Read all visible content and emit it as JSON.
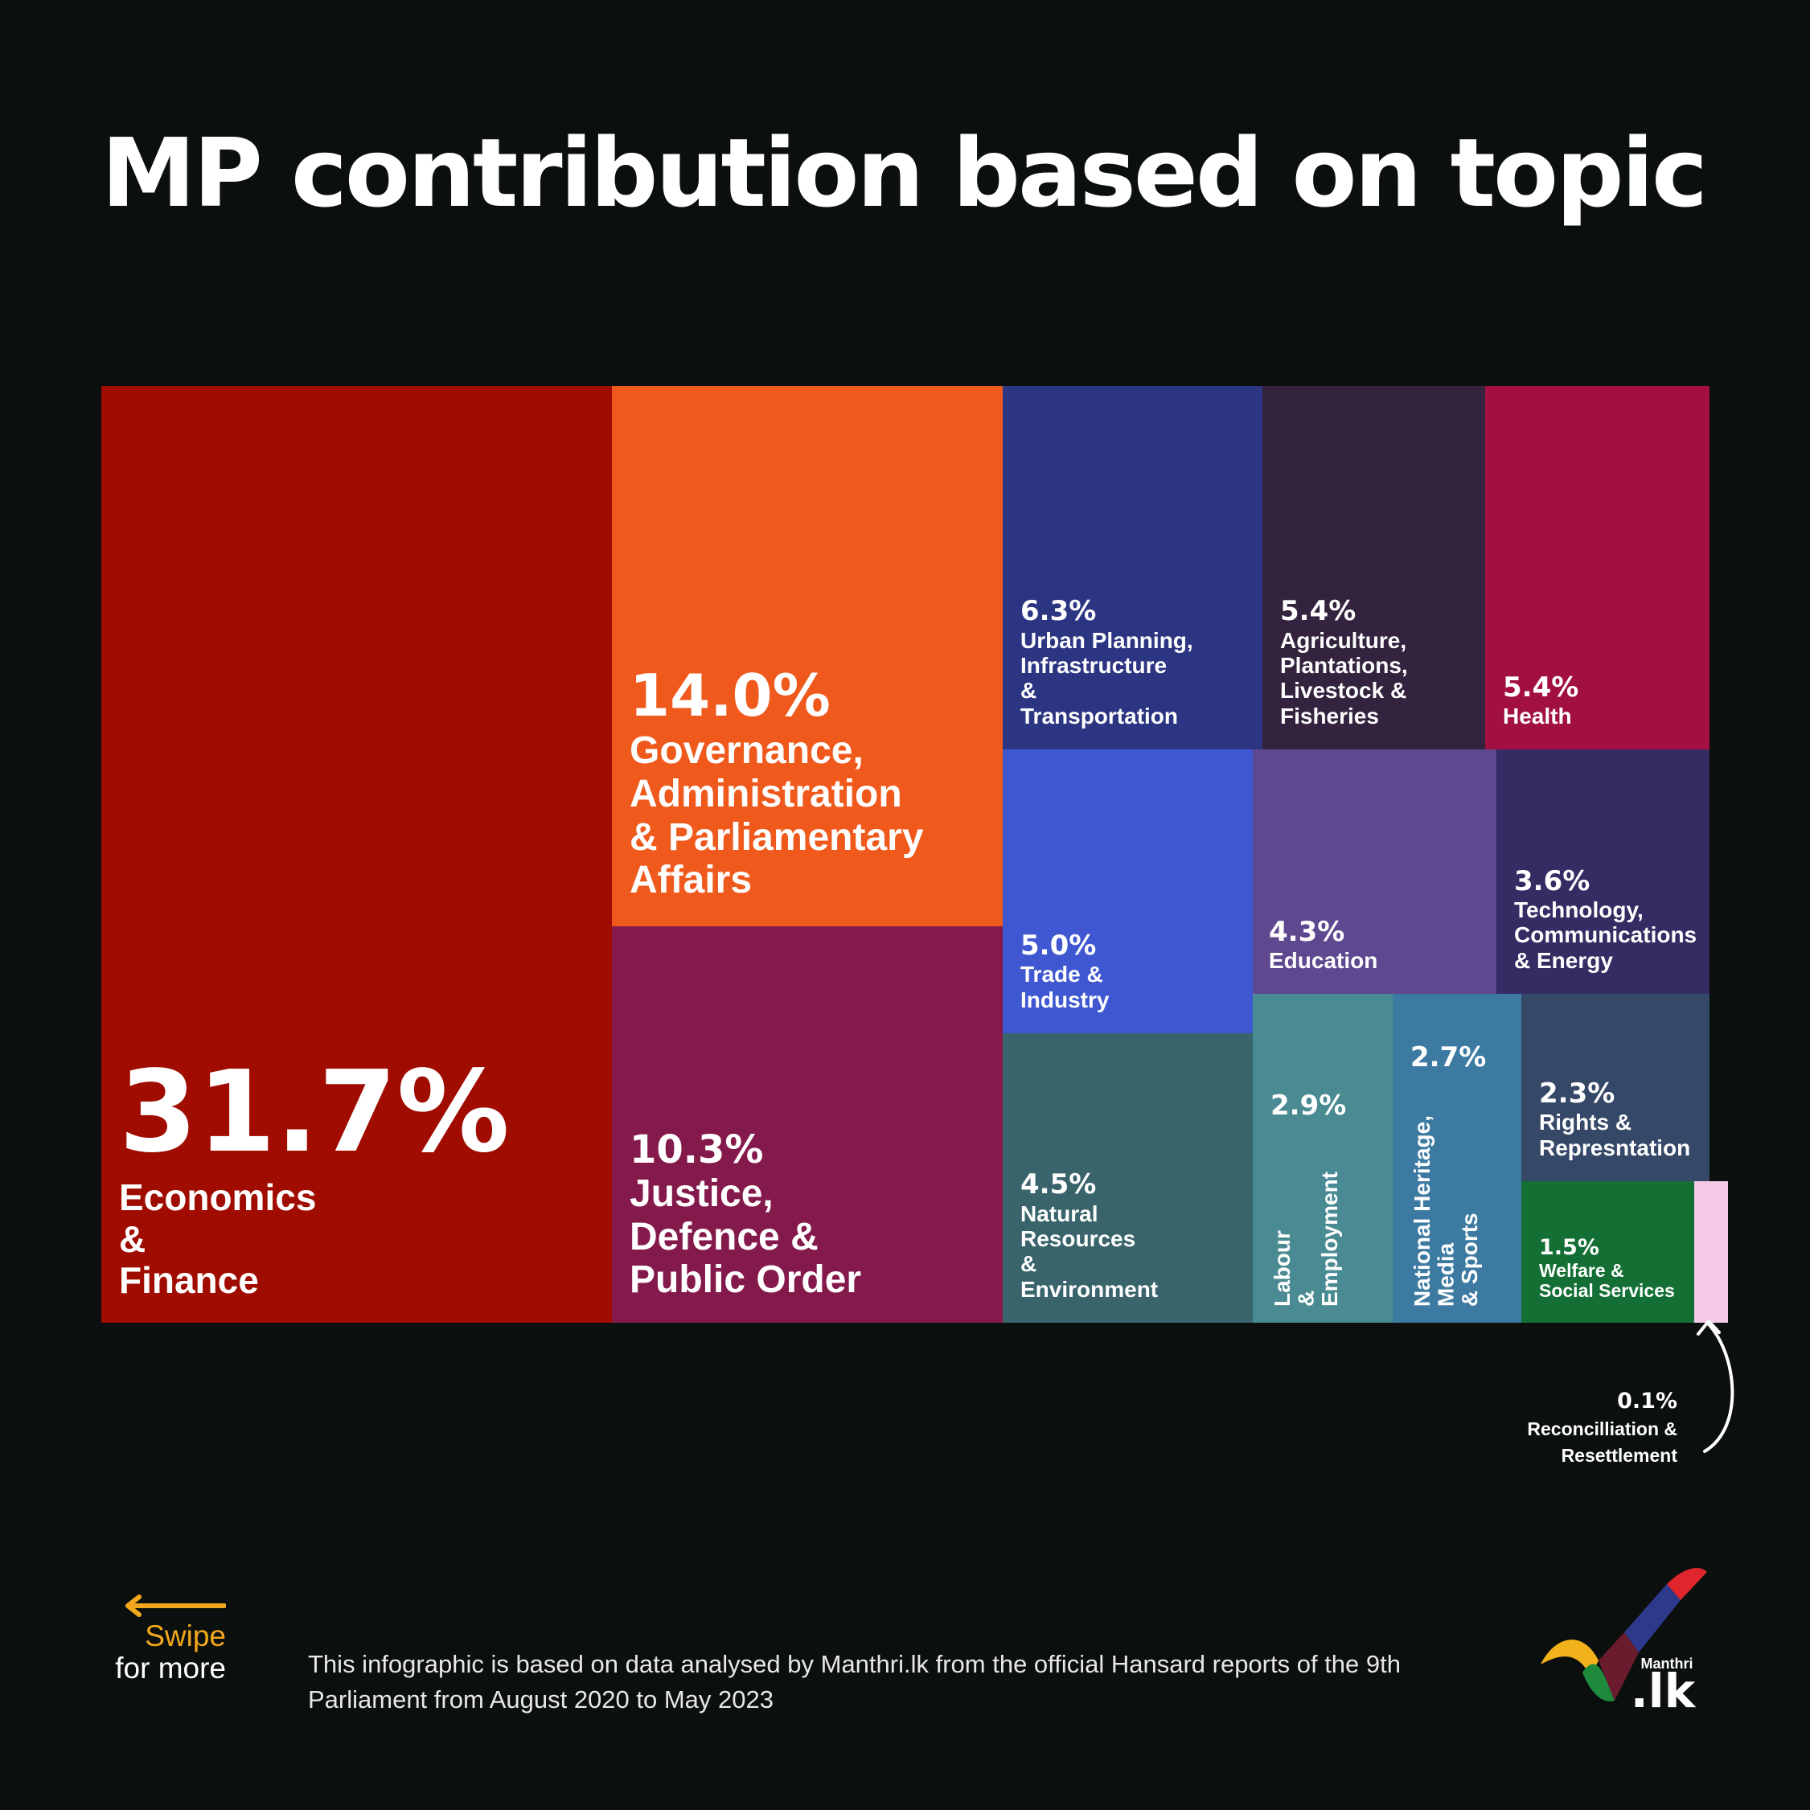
{
  "title": "MP contribution based on topic",
  "chart_data": {
    "type": "treemap",
    "title": "MP contribution based on topic",
    "unit": "%",
    "items": [
      {
        "key": "econ",
        "pct": "31.7%",
        "value": 31.7,
        "label": "Economics\n&\nFinance",
        "color": "#a00c00"
      },
      {
        "key": "gov",
        "pct": "14.0%",
        "value": 14.0,
        "label": "Governance,\nAdministration\n& Parliamentary\nAffairs",
        "color": "#ef5a1c"
      },
      {
        "key": "justice",
        "pct": "10.3%",
        "value": 10.3,
        "label": "Justice,\nDefence &\nPublic Order",
        "color": "#841a4c"
      },
      {
        "key": "urban",
        "pct": "6.3%",
        "value": 6.3,
        "label": "Urban Planning,\nInfrastructure\n&\nTransportation",
        "color": "#2c3582"
      },
      {
        "key": "agri",
        "pct": "5.4%",
        "value": 5.4,
        "label": "Agriculture,\nPlantations,\nLivestock &\nFisheries",
        "color": "#33233f"
      },
      {
        "key": "health",
        "pct": "5.4%",
        "value": 5.4,
        "label": "Health",
        "color": "#a20f42"
      },
      {
        "key": "trade",
        "pct": "5.0%",
        "value": 5.0,
        "label": "Trade &\nIndustry",
        "color": "#3f57d1"
      },
      {
        "key": "edu",
        "pct": "4.3%",
        "value": 4.3,
        "label": "Education",
        "color": "#5e4990"
      },
      {
        "key": "tech",
        "pct": "3.6%",
        "value": 3.6,
        "label": "Technology,\nCommunications\n& Energy",
        "color": "#362c64"
      },
      {
        "key": "natres",
        "pct": "4.5%",
        "value": 4.5,
        "label": "Natural\nResources\n&\nEnvironment",
        "color": "#39646c"
      },
      {
        "key": "labour",
        "pct": "2.9%",
        "value": 2.9,
        "label": "Labour\n&\nEmployment",
        "color": "#4a8a93"
      },
      {
        "key": "heritage",
        "pct": "2.7%",
        "value": 2.7,
        "label": "National Heritage,\nMedia\n& Sports",
        "color": "#3d7aa2"
      },
      {
        "key": "rights",
        "pct": "2.3%",
        "value": 2.3,
        "label": "Rights &\nRepresntation",
        "color": "#354867"
      },
      {
        "key": "welfare",
        "pct": "1.5%",
        "value": 1.5,
        "label": "Welfare &\nSocial Services",
        "color": "#146f35"
      },
      {
        "key": "recon",
        "pct": "0.1%",
        "value": 0.1,
        "label": "Reconcilliation &\nResettlement",
        "color": "#f6c9e8"
      }
    ]
  },
  "swipe": {
    "line1": "Swipe",
    "line2": "for more",
    "arrow_color": "#f2a81d"
  },
  "footnote": "This infographic is based on data analysed by Manthri.lk from the official Hansard reports of the 9th Parliament from August 2020 to May 2023",
  "logo": {
    "small_text": "Manthri",
    "big_text": ".lk"
  }
}
